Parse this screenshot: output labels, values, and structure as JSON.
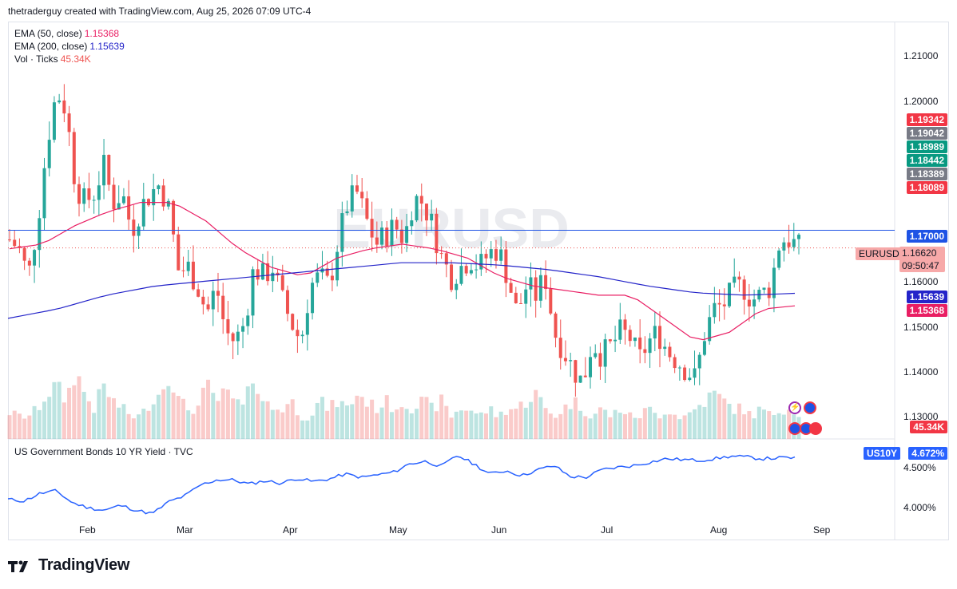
{
  "header": {
    "attribution": "thetraderguy created with TradingView.com, Aug 25, 2026 07:09 UTC-4"
  },
  "watermark": "EURUSD",
  "legend": {
    "ema50_label": "EMA (50, close)",
    "ema50_value": "1.15368",
    "ema200_label": "EMA (200, close)",
    "ema200_value": "1.15639",
    "vol_label": "Vol · Ticks",
    "vol_value": "45.34K"
  },
  "lower_pane": {
    "title": "US Government Bonds 10 YR Yield · TVC",
    "symbol": "US10Y",
    "value": "4.672%"
  },
  "price_axis": [
    "1.21000",
    "1.20000",
    "1.16000",
    "1.15000",
    "1.14000",
    "1.13000"
  ],
  "price_labels": {
    "l1": "1.19342",
    "l2": "1.19042",
    "l3": "1.18989",
    "l4": "1.18442",
    "l5": "1.18389",
    "l6": "1.18089",
    "l7": "1.17000",
    "current_symbol": "EURUSD",
    "current_price": "1.16620",
    "countdown": "09:50:47",
    "ema200": "1.15639",
    "ema50": "1.15368",
    "volume": "45.34K"
  },
  "yield_axis": [
    "4.500%",
    "4.000%"
  ],
  "months": [
    "Feb",
    "Mar",
    "Apr",
    "May",
    "Jun",
    "Jul",
    "Aug",
    "Sep"
  ],
  "logo_text": "TradingView",
  "colors": {
    "up": "#26a69a",
    "down": "#ef5350",
    "ema50": "#e91e63",
    "ema200": "#2424c9",
    "yield": "#2962ff",
    "hline": "#1e53e5"
  },
  "chart_data": {
    "type": "candlestick",
    "symbol": "EURUSD",
    "ylim": [
      1.125,
      1.215
    ],
    "horizontal_line": 1.17,
    "current_price": 1.1662,
    "close_path": [
      1.168,
      1.166,
      1.16,
      1.172,
      1.189,
      1.2,
      1.196,
      1.18,
      1.176,
      1.178,
      1.184,
      1.176,
      1.178,
      1.17,
      1.175,
      1.178,
      1.18,
      1.174,
      1.161,
      1.162,
      1.158,
      1.152,
      1.158,
      1.148,
      1.146,
      1.15,
      1.162,
      1.16,
      1.162,
      1.155,
      1.15,
      1.146,
      1.158,
      1.16,
      1.158,
      1.168,
      1.176,
      1.178,
      1.172,
      1.167,
      1.169,
      1.171,
      1.168,
      1.177,
      1.176,
      1.171,
      1.164,
      1.16,
      1.162,
      1.164,
      1.162,
      1.165,
      1.166,
      1.16,
      1.152,
      1.158,
      1.156,
      1.16,
      1.148,
      1.144,
      1.14,
      1.137,
      1.146,
      1.143,
      1.145,
      1.148,
      1.147,
      1.142,
      1.146,
      1.148,
      1.144,
      1.142,
      1.14,
      1.138,
      1.148,
      1.153,
      1.154,
      1.157,
      1.158,
      1.155,
      1.156,
      1.158,
      1.168,
      1.168,
      1.1662
    ],
    "ema50": [
      1.166,
      1.167,
      1.171,
      1.174,
      1.176,
      1.176,
      1.172,
      1.166,
      1.162,
      1.16,
      1.164,
      1.166,
      1.167,
      1.166,
      1.164,
      1.16,
      1.158,
      1.157,
      1.156,
      1.156,
      1.151,
      1.146,
      1.148,
      1.153,
      1.1537
    ],
    "ema200": [
      1.151,
      1.153,
      1.156,
      1.158,
      1.159,
      1.16,
      1.161,
      1.162,
      1.163,
      1.163,
      1.1625,
      1.1615,
      1.16,
      1.158,
      1.1565,
      1.156,
      1.1564
    ],
    "volume_relative": [
      0.35,
      0.3,
      0.3,
      0.4,
      0.6,
      0.7,
      0.5,
      0.9,
      0.6,
      0.4,
      0.7,
      0.5,
      0.4,
      0.3,
      0.3,
      0.5,
      0.6,
      0.9,
      0.5,
      0.4,
      0.4,
      0.7,
      0.5,
      0.6,
      0.5,
      0.4,
      0.9,
      0.5,
      0.4,
      0.4,
      0.5,
      0.3,
      0.3,
      0.5,
      0.4,
      0.5,
      0.4,
      0.6,
      0.5,
      0.4,
      0.5,
      0.4,
      0.5,
      0.4,
      0.5,
      0.4,
      0.5,
      0.3,
      0.4,
      0.4,
      0.3,
      0.4,
      0.3,
      0.4,
      0.4,
      0.5,
      0.6,
      0.4,
      0.3,
      0.4,
      0.5,
      0.4,
      0.3,
      0.4,
      0.3,
      0.4,
      0.3,
      0.3,
      0.4,
      0.3,
      0.4,
      0.3,
      0.3,
      0.4,
      0.5,
      0.6,
      0.5,
      0.4,
      0.4,
      0.3,
      0.4,
      0.3,
      0.4,
      0.4,
      0.35
    ],
    "yield_range": [
      3.95,
      4.8
    ],
    "yield_path": [
      4.18,
      4.16,
      4.25,
      4.28,
      4.14,
      4.08,
      4.05,
      4.11,
      4.05,
      4.01,
      4.15,
      4.22,
      4.35,
      4.41,
      4.41,
      4.36,
      4.4,
      4.37,
      4.43,
      4.39,
      4.42,
      4.48,
      4.44,
      4.47,
      4.5,
      4.6,
      4.63,
      4.57,
      4.7,
      4.6,
      4.48,
      4.52,
      4.46,
      4.53,
      4.58,
      4.45,
      4.44,
      4.53,
      4.56,
      4.58,
      4.62,
      4.66,
      4.65,
      4.64,
      4.66,
      4.69,
      4.68,
      4.66,
      4.67,
      4.672
    ]
  }
}
